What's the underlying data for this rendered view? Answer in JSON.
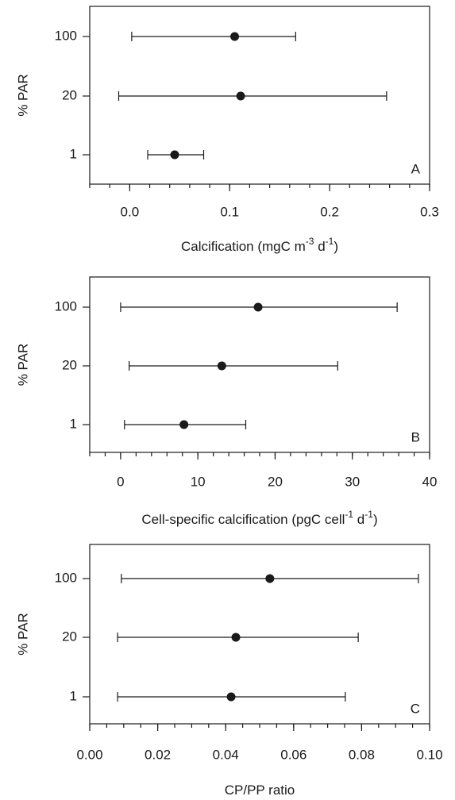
{
  "chart_data": [
    {
      "type": "dotplot",
      "ylabel": "% PAR",
      "categories": [
        "100",
        "20",
        "1"
      ],
      "panel_label": "A",
      "values": [
        0.105,
        0.111,
        0.045
      ],
      "lower": [
        0.002,
        -0.011,
        0.018
      ],
      "upper": [
        0.166,
        0.257,
        0.074
      ],
      "xlabel": [
        {
          "text": "Calcification (mgC m"
        },
        {
          "text": "-3",
          "sup": true
        },
        {
          "text": " d"
        },
        {
          "text": "-1",
          "sup": true
        },
        {
          "text": ")"
        }
      ],
      "xlim": [
        -0.04,
        0.3
      ],
      "xticks": [
        {
          "value": 0,
          "label": "0.0"
        },
        0.1,
        0.2,
        0.3
      ],
      "minor_xtick_step": 0.02,
      "color": "#1a1a1a"
    },
    {
      "type": "dotplot",
      "ylabel": "% PAR",
      "categories": [
        "100",
        "20",
        "1"
      ],
      "panel_label": "B",
      "values": [
        17.8,
        13.1,
        8.2
      ],
      "lower": [
        0.0,
        1.1,
        0.5
      ],
      "upper": [
        35.8,
        28.1,
        16.2
      ],
      "xlabel": [
        {
          "text": "Cell-specific calcification (pgC cell"
        },
        {
          "text": "-1",
          "sup": true
        },
        {
          "text": " d"
        },
        {
          "text": "-1",
          "sup": true
        },
        {
          "text": ")"
        }
      ],
      "xlim": [
        -4,
        40
      ],
      "xticks": [
        0,
        10,
        20,
        30,
        40
      ],
      "minor_xtick_step": 2,
      "color": "#1a1a1a"
    },
    {
      "type": "dotplot",
      "ylabel": "% PAR",
      "categories": [
        "100",
        "20",
        "1"
      ],
      "panel_label": "C",
      "values": [
        0.053,
        0.043,
        0.0416
      ],
      "lower": [
        0.0093,
        0.0082,
        0.0082
      ],
      "upper": [
        0.0967,
        0.079,
        0.0752
      ],
      "xlabel": [
        {
          "text": "CP/PP ratio"
        }
      ],
      "xlim": [
        0,
        0.1
      ],
      "xticks": [
        {
          "value": 0,
          "label": "0.00"
        },
        0.02,
        0.04,
        0.06,
        0.08,
        {
          "value": 0.1,
          "label": "0.10"
        }
      ],
      "minor_xtick_step": 0.005,
      "color": "#1a1a1a"
    }
  ]
}
